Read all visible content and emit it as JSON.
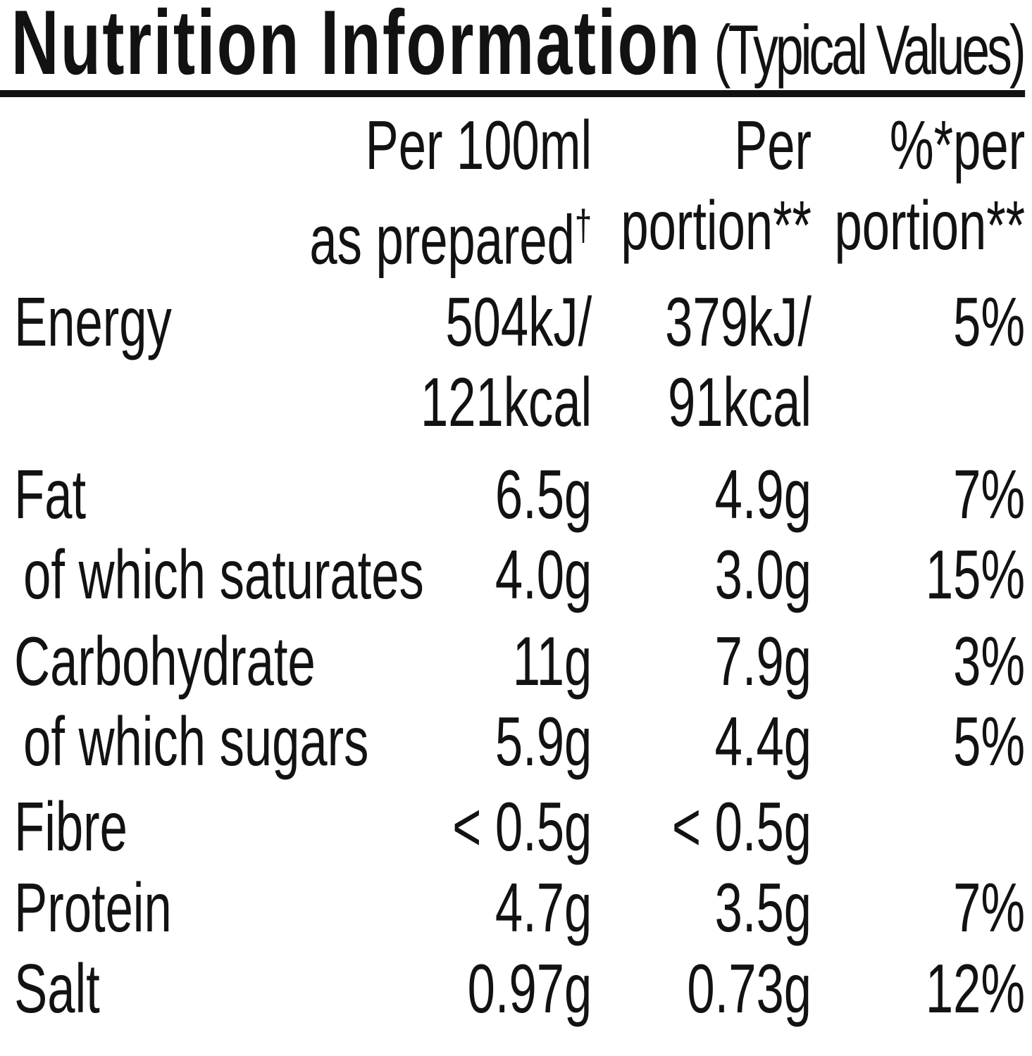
{
  "colors": {
    "text": "#121212",
    "background": "#ffffff"
  },
  "title": {
    "main": "Nutrition Information",
    "suffix": "(Typical Values)"
  },
  "header": {
    "per100ml": {
      "line1": "Per 100ml",
      "line2": "as prepared",
      "mark": "†"
    },
    "per_portion": {
      "line1": "Per",
      "line2": "portion**"
    },
    "pct_portion": {
      "line1": "%*per",
      "line2": "portion**"
    }
  },
  "rows": [
    {
      "label": "Energy",
      "per100ml_l1": "504kJ/",
      "per100ml_l2": "121kcal",
      "portion_l1": "379kJ/",
      "portion_l2": "91kcal",
      "pct": "5%"
    },
    {
      "label": "Fat",
      "per100ml": "6.5g",
      "portion": "4.9g",
      "pct": "7%"
    },
    {
      "label": "of which saturates",
      "per100ml": "4.0g",
      "portion": "3.0g",
      "pct": "15%"
    },
    {
      "label": "Carbohydrate",
      "per100ml": "11g",
      "portion": "7.9g",
      "pct": "3%"
    },
    {
      "label": "of which sugars",
      "per100ml": "5.9g",
      "portion": "4.4g",
      "pct": "5%"
    },
    {
      "label": "Fibre",
      "per100ml": "< 0.5g",
      "portion": "< 0.5g",
      "pct": ""
    },
    {
      "label": "Protein",
      "per100ml": "4.7g",
      "portion": "3.5g",
      "pct": "7%"
    },
    {
      "label": "Salt",
      "per100ml": "0.97g",
      "portion": "0.73g",
      "pct": "12%"
    }
  ]
}
